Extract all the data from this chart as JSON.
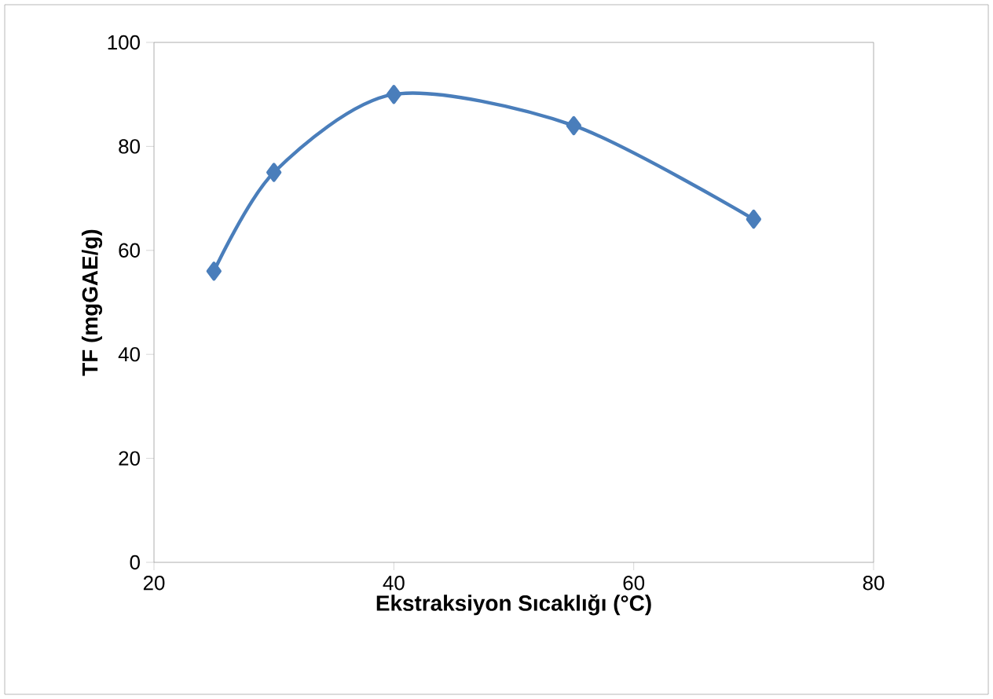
{
  "chart_data": {
    "type": "line",
    "xlabel": "Ekstraksiyon Sıcaklığı (°C)",
    "ylabel": "TF (mgGAE/g)",
    "x": [
      25,
      30,
      40,
      55,
      70
    ],
    "values": [
      56,
      75,
      90,
      84,
      66
    ],
    "color": "#4a7ebb",
    "marker": "diamond",
    "xlim": [
      20,
      80
    ],
    "xticks": [
      20,
      40,
      60,
      80
    ],
    "ylim": [
      0,
      100
    ],
    "yticks": [
      0,
      20,
      40,
      60,
      80,
      100
    ]
  }
}
